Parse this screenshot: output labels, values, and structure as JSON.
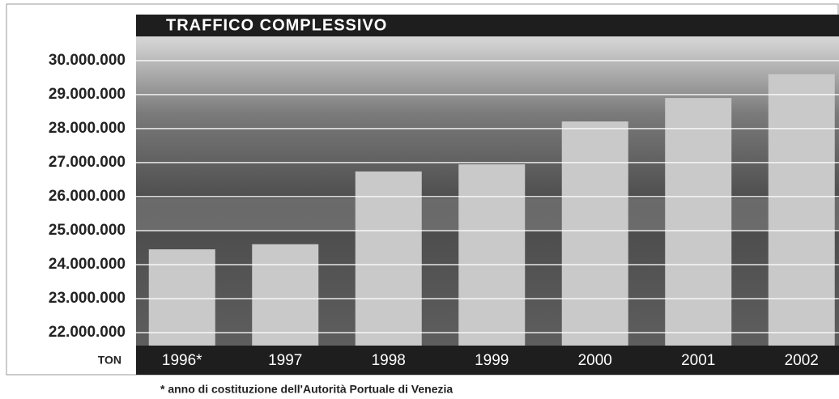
{
  "chart_data": {
    "type": "bar",
    "title": "TRAFFICO COMPLESSIVO",
    "y_unit": "TON",
    "footnote": "* anno di costituzione dell'Autorità Portuale di Venezia",
    "categories": [
      "1996*",
      "1997",
      "1998",
      "1999",
      "2000",
      "2001",
      "2002"
    ],
    "values": [
      24450000,
      24600000,
      26740000,
      26950000,
      28210000,
      28900000,
      29600000
    ],
    "color": "#c9c9c9",
    "ylim": [
      21620000,
      30710000
    ],
    "yticks": [
      {
        "value": 22000000,
        "label": "22.000.000"
      },
      {
        "value": 23000000,
        "label": "23.000.000"
      },
      {
        "value": 24000000,
        "label": "24.000.000"
      },
      {
        "value": 25000000,
        "label": "25.000.000"
      },
      {
        "value": 26000000,
        "label": "26.000.000"
      },
      {
        "value": 27000000,
        "label": "27.000.000"
      },
      {
        "value": 28000000,
        "label": "28.000.000"
      },
      {
        "value": 29000000,
        "label": "29.000.000"
      },
      {
        "value": 30000000,
        "label": "30.000.000"
      }
    ],
    "grid": true
  }
}
